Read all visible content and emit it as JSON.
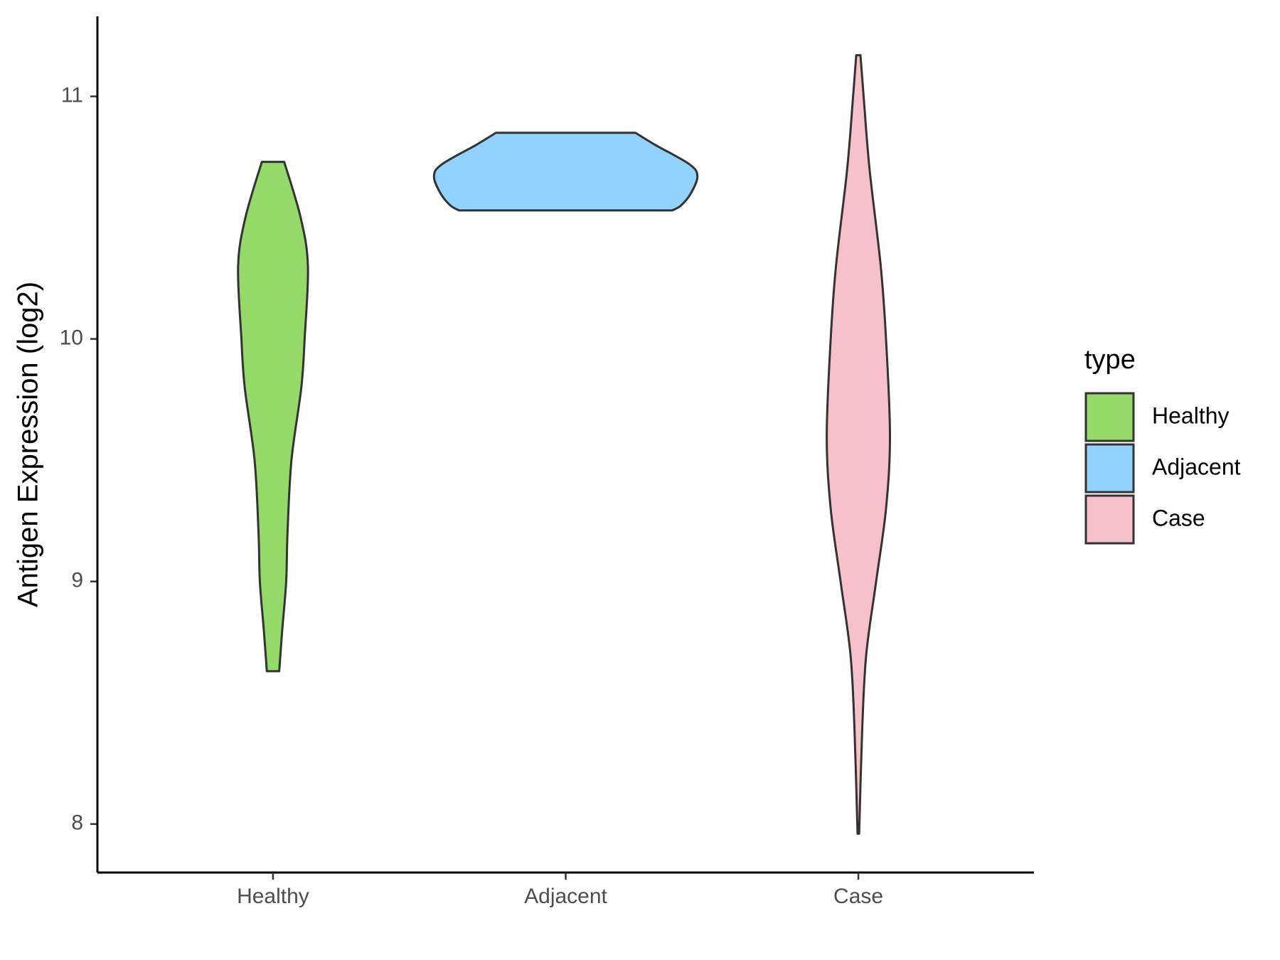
{
  "chart_data": {
    "type": "violin",
    "ylabel": "Antigen Expression (log2)",
    "categories": [
      "Healthy",
      "Adjacent",
      "Case"
    ],
    "legend_title": "type",
    "series": [
      {
        "name": "Healthy",
        "color": "#93da69",
        "y": [
          10.73,
          10.5,
          10.3,
          10.0,
          9.8,
          9.5,
          9.2,
          9.0,
          8.8,
          8.63
        ],
        "density": [
          0.085,
          0.21,
          0.265,
          0.24,
          0.215,
          0.14,
          0.11,
          0.1,
          0.07,
          0.047
        ]
      },
      {
        "name": "Adjacent",
        "color": "#92d2ff",
        "y": [
          10.85,
          10.8,
          10.72,
          10.67,
          10.6,
          10.55,
          10.53
        ],
        "density": [
          0.53,
          0.68,
          0.94,
          1.0,
          0.95,
          0.875,
          0.81
        ]
      },
      {
        "name": "Case",
        "color": "#f7c1cb",
        "y": [
          11.17,
          11.0,
          10.7,
          10.3,
          10.0,
          9.6,
          9.3,
          9.0,
          8.7,
          8.4,
          7.96
        ],
        "density": [
          0.016,
          0.04,
          0.085,
          0.17,
          0.21,
          0.24,
          0.21,
          0.135,
          0.06,
          0.03,
          0.006
        ]
      }
    ],
    "ylim": [
      7.8,
      11.33
    ],
    "yticks": [
      8,
      9,
      10,
      11
    ],
    "legend_position": "right"
  }
}
